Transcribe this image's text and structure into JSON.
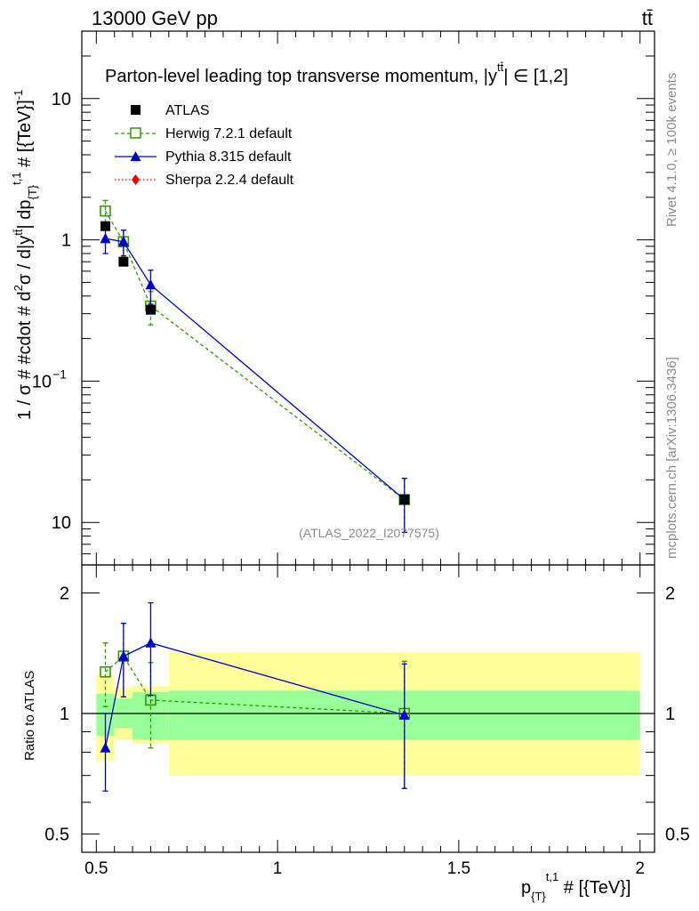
{
  "header": {
    "energy_label": "13000 GeV pp",
    "process_label": "tt̄",
    "side_label_top": "Rivet 4.1.0, ≥ 100k events",
    "side_label_bottom": "mcplots.cern.ch [arXiv:1306.3436]",
    "watermark": "(ATLAS_2022_I2077575)"
  },
  "chart_data": [
    {
      "type": "scatter",
      "panel": "main",
      "title": "Parton-level leading top transverse momentum, |y̅| ∈ [1,2]",
      "title_display": "Parton-level leading top transverse momentum, |y",
      "title_tail": "| ∈ [1,2]",
      "title_super": "tt̄",
      "ylabel": "1 / σ # #cdot # d²σ / d|y^{tt̄}| dp_{T}^{t,1} # [{TeV}]^{-1}",
      "ylabel_parts": [
        "1 / σ # #cdot # d",
        "2",
        "σ / d|y",
        "tt̄",
        "| dp",
        "{T}",
        "t,1",
        " # [{TeV}]",
        "-1"
      ],
      "yscale": "log",
      "ylim": [
        0.005,
        30
      ],
      "xlim": [
        0.46,
        2.04
      ],
      "ytick_labels": [
        "10",
        "1",
        "10",
        "−1",
        "10"
      ],
      "series": [
        {
          "name": "ATLAS",
          "color": "#000000",
          "marker": "square-filled",
          "x": [
            0.525,
            0.575,
            0.65,
            1.35
          ],
          "y": [
            1.25,
            0.7,
            0.32,
            0.0145
          ]
        },
        {
          "name": "Herwig 7.2.1 default",
          "color": "#339900",
          "marker": "square-open",
          "line": "dashed",
          "x": [
            0.525,
            0.575,
            0.65,
            1.35
          ],
          "y": [
            1.6,
            0.97,
            0.34,
            0.0145
          ],
          "yerr_low": [
            0.3,
            0.2,
            0.09,
            0.006
          ],
          "yerr_high": [
            0.3,
            0.2,
            0.09,
            0.006
          ]
        },
        {
          "name": "Pythia 8.315 default",
          "color": "#0000cc",
          "marker": "triangle-filled",
          "line": "solid",
          "x": [
            0.525,
            0.575,
            0.65,
            1.35
          ],
          "y": [
            1.02,
            0.97,
            0.48,
            0.0145
          ],
          "yerr_low": [
            0.22,
            0.2,
            0.13,
            0.006
          ],
          "yerr_high": [
            0.22,
            0.2,
            0.13,
            0.006
          ]
        },
        {
          "name": "Sherpa 2.2.4 default",
          "color": "#ee0000",
          "marker": "diamond-filled",
          "line": "dotted",
          "x": [],
          "y": []
        }
      ]
    },
    {
      "type": "scatter",
      "panel": "ratio",
      "ylabel": "Ratio to ATLAS",
      "xlabel": "p_{T}^{t,1} # [{TeV}]",
      "xlabel_parts": [
        "p",
        "{T}",
        "t,1",
        " # [{TeV}]"
      ],
      "yscale": "log",
      "ylim": [
        0.45,
        2.35
      ],
      "xlim": [
        0.46,
        2.04
      ],
      "ytick_labels": [
        "2",
        "1",
        "0.5"
      ],
      "xtick_labels": [
        "0.5",
        "1",
        "1.5",
        "2"
      ],
      "uncertainty_bands": [
        {
          "x_low": 0.5,
          "x_high": 0.55,
          "inner": [
            0.88,
            1.12
          ],
          "outer": [
            0.76,
            1.25
          ]
        },
        {
          "x_low": 0.55,
          "x_high": 0.6,
          "inner": [
            0.92,
            1.09
          ],
          "outer": [
            0.86,
            1.16
          ]
        },
        {
          "x_low": 0.6,
          "x_high": 0.7,
          "inner": [
            0.86,
            1.13
          ],
          "outer": [
            0.84,
            1.17
          ]
        },
        {
          "x_low": 0.7,
          "x_high": 2.0,
          "inner": [
            0.86,
            1.14
          ],
          "outer": [
            0.7,
            1.42
          ]
        }
      ],
      "series": [
        {
          "name": "Herwig 7.2.1 default",
          "color": "#339900",
          "marker": "square-open",
          "line": "dashed",
          "x": [
            0.525,
            0.575,
            0.65,
            1.35
          ],
          "y": [
            1.27,
            1.39,
            1.08,
            1.0
          ],
          "yerr_low": [
            0.23,
            0.29,
            0.26,
            0.35
          ],
          "yerr_high": [
            0.23,
            0.29,
            0.26,
            0.35
          ]
        },
        {
          "name": "Pythia 8.315 default",
          "color": "#0000cc",
          "marker": "triangle-filled",
          "line": "solid",
          "x": [
            0.525,
            0.575,
            0.65,
            1.35
          ],
          "y": [
            0.82,
            1.39,
            1.5,
            0.99
          ],
          "yerr_low": [
            0.18,
            0.29,
            0.39,
            0.34
          ],
          "yerr_high": [
            0.18,
            0.29,
            0.39,
            0.34
          ]
        }
      ]
    }
  ],
  "colors": {
    "band_inner": "#99ff99",
    "band_outer": "#ffff99"
  }
}
